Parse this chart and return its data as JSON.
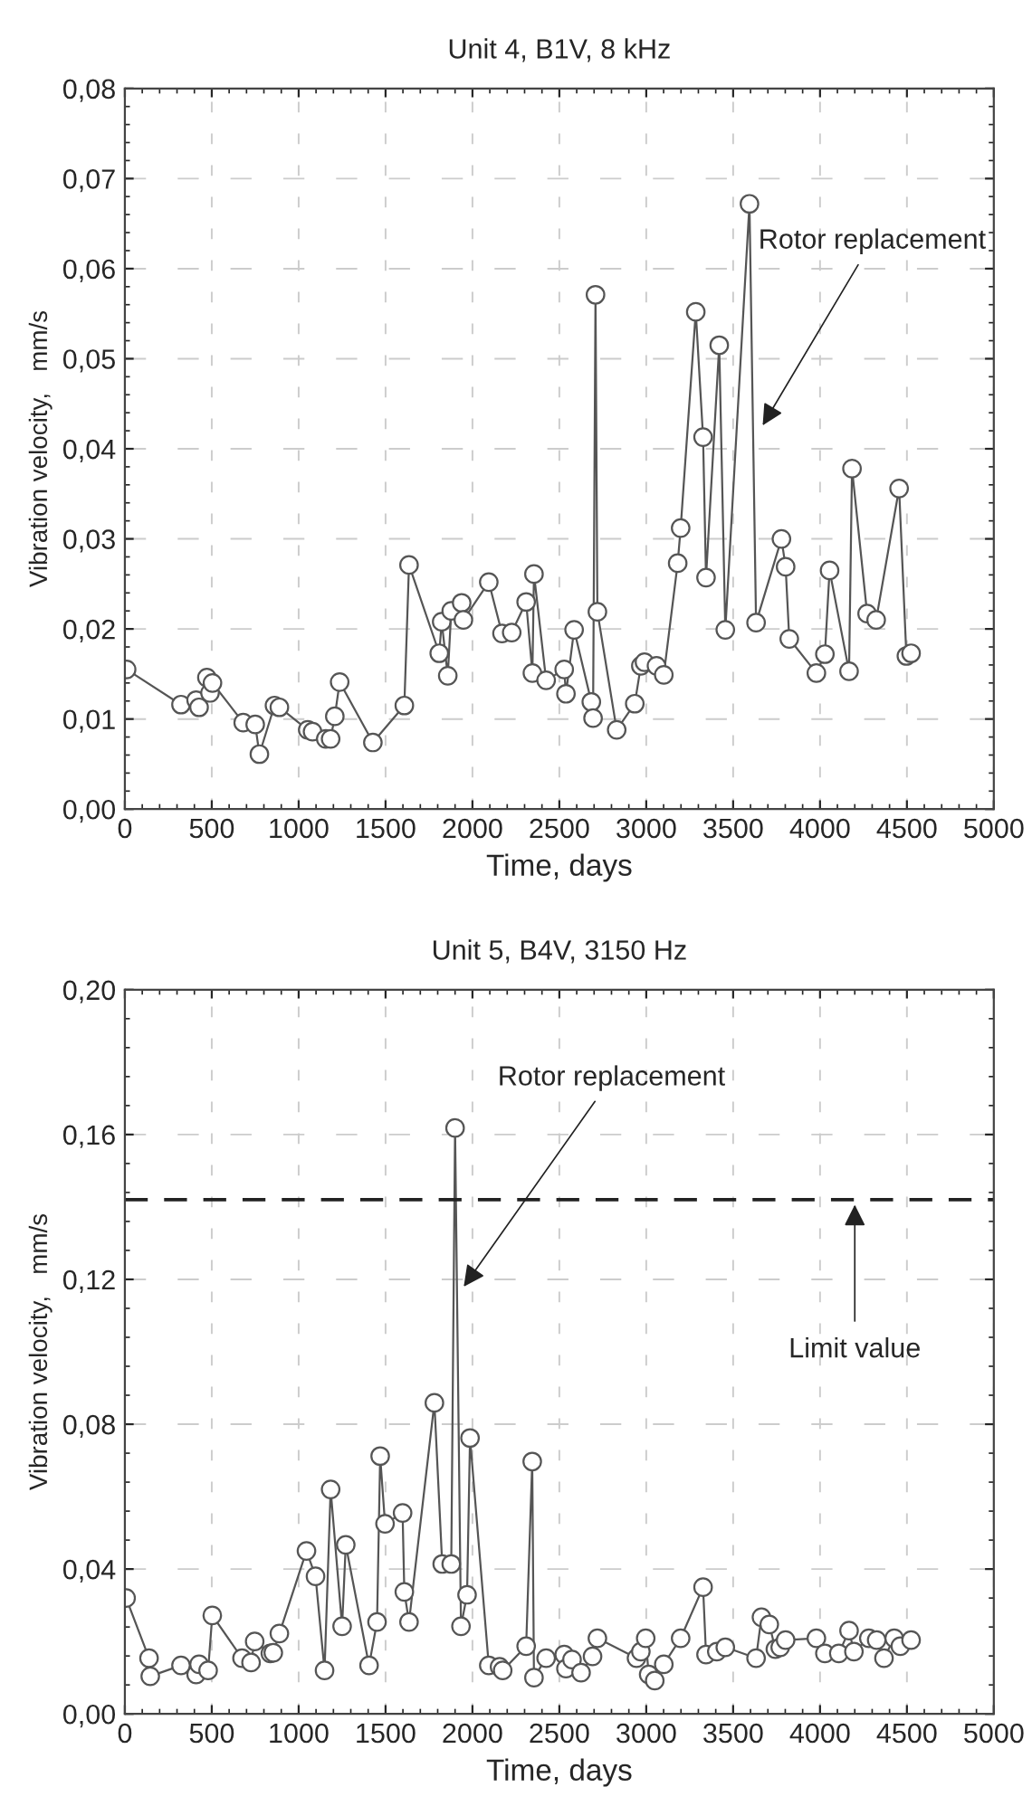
{
  "chart_data": [
    {
      "type": "line",
      "title": "Unit 4, B1V, 8 kHz",
      "xlabel": "Time, days",
      "ylabel": "Vibration velocity,   mm/s",
      "marker": "circle",
      "line_style": "solid",
      "grid": true,
      "legend": false,
      "xlim": [
        0,
        5000
      ],
      "xticks": [
        0,
        500,
        1000,
        1500,
        2000,
        2500,
        3000,
        3500,
        4000,
        4500,
        5000
      ],
      "ylim": [
        0,
        0.08
      ],
      "yticks": [
        {
          "value": 0,
          "label": "0,00"
        },
        {
          "value": 0.01,
          "label": "0,01"
        },
        {
          "value": 0.02,
          "label": "0,02"
        },
        {
          "value": 0.03,
          "label": "0,03"
        },
        {
          "value": 0.04,
          "label": "0,04"
        },
        {
          "value": 0.05,
          "label": "0,05"
        },
        {
          "value": 0.06,
          "label": "0,06"
        },
        {
          "value": 0.07,
          "label": "0,07"
        },
        {
          "value": 0.08,
          "label": "0,08"
        }
      ],
      "series": [
        {
          "color": "#555555",
          "x": [
            10,
            323,
            410,
            427,
            472,
            490,
            504,
            681,
            750,
            774,
            861,
            889,
            1052,
            1080,
            1156,
            1184,
            1208,
            1236,
            1427,
            1608,
            1635,
            1809,
            1823,
            1858,
            1878,
            1938,
            1948,
            2094,
            2170,
            2226,
            2309,
            2345,
            2354,
            2424,
            2528,
            2538,
            2585,
            2684,
            2694,
            2708,
            2719,
            2830,
            2934,
            2969,
            2990,
            3059,
            3101,
            3181,
            3198,
            3285,
            3327,
            3344,
            3420,
            3455,
            3594,
            3632,
            3778,
            3802,
            3823,
            3979,
            4028,
            4055,
            4167,
            4184,
            4271,
            4323,
            4455,
            4497,
            4524
          ],
          "values": [
            0.0155,
            0.0116,
            0.0121,
            0.0113,
            0.0146,
            0.0129,
            0.014,
            0.0096,
            0.0094,
            0.0061,
            0.0115,
            0.0113,
            0.0088,
            0.0086,
            0.0078,
            0.0078,
            0.0103,
            0.0141,
            0.0074,
            0.0115,
            0.0271,
            0.0173,
            0.0208,
            0.0148,
            0.022,
            0.0229,
            0.021,
            0.0252,
            0.0195,
            0.0196,
            0.023,
            0.0151,
            0.0261,
            0.0143,
            0.0155,
            0.0128,
            0.0199,
            0.0119,
            0.0101,
            0.0571,
            0.0219,
            0.0088,
            0.0117,
            0.0159,
            0.0163,
            0.0159,
            0.0149,
            0.0273,
            0.0312,
            0.0552,
            0.0413,
            0.0257,
            0.0515,
            0.0199,
            0.0672,
            0.0207,
            0.03,
            0.0269,
            0.0189,
            0.0151,
            0.0172,
            0.0265,
            0.0153,
            0.0378,
            0.0217,
            0.021,
            0.0356,
            0.017,
            0.0173
          ]
        }
      ],
      "annotations": [
        {
          "text": "Rotor replacement",
          "x": 3670,
          "y": 0.0426
        }
      ]
    },
    {
      "type": "line",
      "title": "Unit 5, B4V, 3150 Hz",
      "xlabel": "Time, days",
      "ylabel": "Vibration velocity,   mm/s",
      "marker": "circle",
      "line_style": "solid",
      "grid": true,
      "legend": false,
      "xlim": [
        0,
        5000
      ],
      "xticks": [
        0,
        500,
        1000,
        1500,
        2000,
        2500,
        3000,
        3500,
        4000,
        4500,
        5000
      ],
      "ylim": [
        0,
        0.2
      ],
      "yticks": [
        {
          "value": 0,
          "label": "0,00"
        },
        {
          "value": 0.04,
          "label": "0,04"
        },
        {
          "value": 0.08,
          "label": "0,08"
        },
        {
          "value": 0.12,
          "label": "0,12"
        },
        {
          "value": 0.16,
          "label": "0,16"
        },
        {
          "value": 0.2,
          "label": "0,20"
        }
      ],
      "series": [
        {
          "color": "#555555",
          "x": [
            7,
            139,
            146,
            323,
            410,
            427,
            479,
            503,
            674,
            726,
            747,
            837,
            854,
            889,
            1045,
            1097,
            1149,
            1184,
            1250,
            1271,
            1405,
            1451,
            1469,
            1497,
            1598,
            1608,
            1635,
            1781,
            1826,
            1878,
            1900,
            1934,
            1969,
            1986,
            2094,
            2156,
            2174,
            2309,
            2344,
            2354,
            2424,
            2528,
            2538,
            2573,
            2625,
            2691,
            2719,
            2944,
            2969,
            2997,
            3014,
            3049,
            3101,
            3198,
            3327,
            3344,
            3406,
            3455,
            3632,
            3663,
            3708,
            3743,
            3771,
            3802,
            3979,
            4028,
            4108,
            4167,
            4195,
            4281,
            4326,
            4368,
            4427,
            4462,
            4524
          ],
          "values": [
            0.032,
            0.0154,
            0.0104,
            0.0134,
            0.0109,
            0.0137,
            0.012,
            0.0272,
            0.0154,
            0.0142,
            0.02,
            0.0167,
            0.0169,
            0.0222,
            0.045,
            0.038,
            0.012,
            0.062,
            0.0242,
            0.0467,
            0.0134,
            0.0254,
            0.0712,
            0.0525,
            0.0555,
            0.0337,
            0.0254,
            0.0859,
            0.0414,
            0.0414,
            0.1618,
            0.0242,
            0.0329,
            0.0762,
            0.0134,
            0.013,
            0.012,
            0.0187,
            0.0697,
            0.01,
            0.0154,
            0.0164,
            0.0125,
            0.015,
            0.0114,
            0.0159,
            0.0209,
            0.0154,
            0.0172,
            0.0209,
            0.0109,
            0.0092,
            0.0137,
            0.0209,
            0.035,
            0.0164,
            0.0172,
            0.0184,
            0.0154,
            0.0267,
            0.0247,
            0.0179,
            0.0184,
            0.0204,
            0.0209,
            0.0167,
            0.0167,
            0.023,
            0.0172,
            0.0209,
            0.0204,
            0.0154,
            0.0209,
            0.0187,
            0.0204
          ]
        }
      ],
      "ref_lines": [
        {
          "axis": "y",
          "value": 0.142,
          "label": "Limit value",
          "color": "#222222",
          "line_style": "dashed"
        }
      ],
      "annotations": [
        {
          "text": "Rotor replacement",
          "x": 1950,
          "y": 0.118
        }
      ]
    }
  ]
}
